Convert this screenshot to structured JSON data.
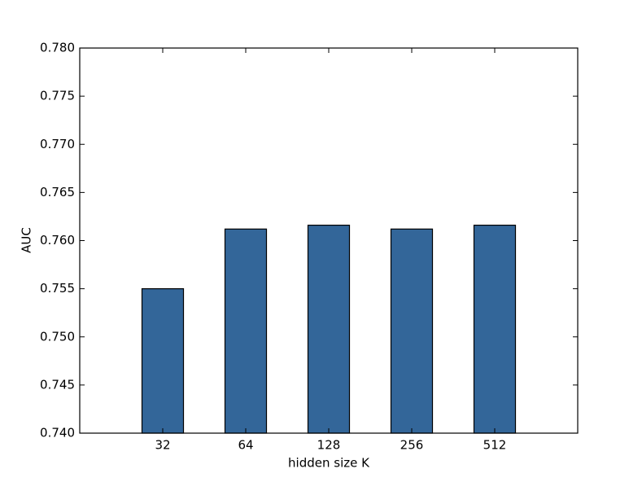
{
  "chart_data": {
    "type": "bar",
    "x_label": "hidden size K",
    "y_label": "AUC",
    "categories": [
      "32",
      "64",
      "128",
      "256",
      "512"
    ],
    "values": [
      0.755,
      0.7612,
      0.7616,
      0.7612,
      0.7616
    ],
    "color": "#336699",
    "ylim": [
      0.74,
      0.78
    ],
    "yticks": [
      {
        "value": 0.74,
        "label": "0.740"
      },
      0.745,
      {
        "value": 0.75,
        "label": "0.750"
      },
      0.755,
      {
        "value": 0.76,
        "label": "0.760"
      },
      0.765,
      {
        "value": 0.77,
        "label": "0.770"
      },
      0.775,
      {
        "value": 0.78,
        "label": "0.780"
      }
    ]
  }
}
